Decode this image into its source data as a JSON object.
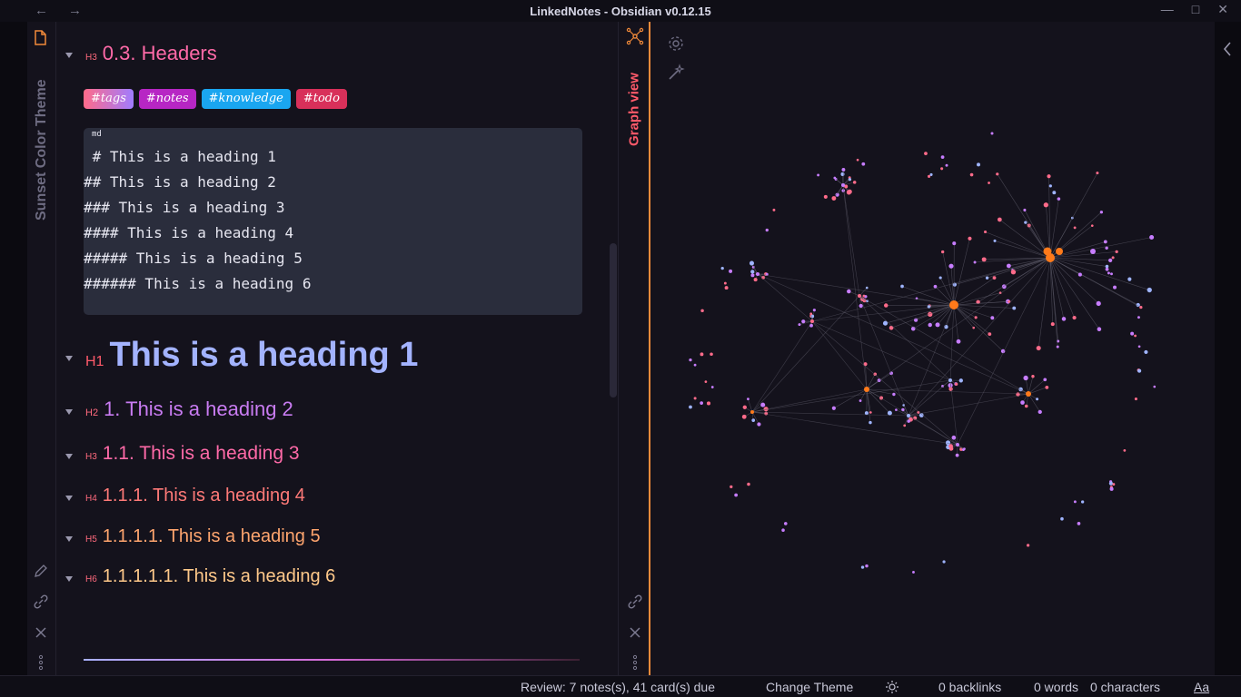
{
  "window": {
    "title": "LinkedNotes - Obsidian v0.12.15",
    "back_glyph": "←",
    "forward_glyph": "→"
  },
  "ribbon": {
    "vertical_title": "Sunset Color Theme"
  },
  "editor": {
    "section_level": "H3",
    "section_title": "0.3. Headers",
    "tags": [
      {
        "label": "#tags",
        "color": "#ff6b8a"
      },
      {
        "label": "#notes",
        "color": "#b726c4"
      },
      {
        "label": "#knowledge",
        "color": "#1aa6f0"
      },
      {
        "label": "#todo",
        "color": "#d8305a"
      }
    ],
    "code_lang": "md",
    "code_lines": [
      " # This is a heading 1",
      "## This is a heading 2",
      "### This is a heading 3",
      "#### This is a heading 4",
      "##### This is a heading 5",
      "###### This is a heading 6"
    ],
    "headings": [
      {
        "level": "H1",
        "text": "This is a heading 1",
        "color": "#a3b3ff"
      },
      {
        "level": "H2",
        "text": "1. This is a heading 2",
        "color": "#c97cf2"
      },
      {
        "level": "H3",
        "text": "1.1. This is a heading 3",
        "color": "#ff6aa8"
      },
      {
        "level": "H4",
        "text": "1.1.1. This is a heading 4",
        "color": "#ff7a78"
      },
      {
        "level": "H5",
        "text": "1.1.1.1. This is a heading 5",
        "color": "#ffa56e"
      },
      {
        "level": "H6",
        "text": "1.1.1.1.1. This is a heading 6",
        "color": "#ffc98a"
      }
    ]
  },
  "sidepanel": {
    "tab_label": "Graph view"
  },
  "statusbar": {
    "review": "Review: 7 notes(s), 41 card(s) due",
    "change_theme": "Change Theme",
    "backlinks": "0 backlinks",
    "words": "0 words",
    "characters": "0 characters",
    "font_toggle": "Aa"
  },
  "colors": {
    "accent_orange": "#f28a3a",
    "node_purple": "#c77dff",
    "node_pink": "#ff6b8a",
    "node_blue": "#9fb4ff",
    "node_orange": "#ff7a1a"
  }
}
